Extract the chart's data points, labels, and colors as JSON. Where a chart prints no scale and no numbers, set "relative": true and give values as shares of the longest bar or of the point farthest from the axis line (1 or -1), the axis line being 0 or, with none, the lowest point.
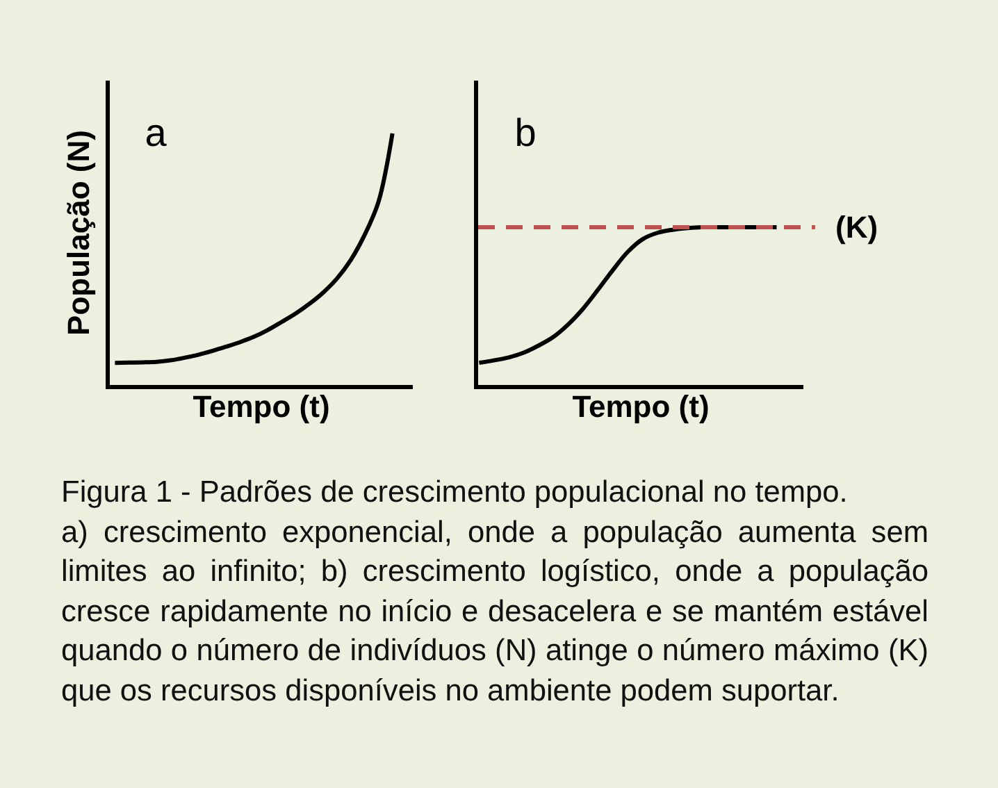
{
  "chart_data": [
    {
      "type": "line",
      "title": "a",
      "xlabel": "Tempo (t)",
      "ylabel": "População (N)",
      "relative": true,
      "categories": [
        null,
        null,
        null,
        null,
        null,
        null,
        null,
        null,
        null,
        null,
        null,
        null,
        null,
        null,
        null,
        null,
        null,
        null,
        null,
        null,
        null
      ],
      "series": [
        {
          "color": "#000000",
          "values": [
            0.088,
            0.089,
            0.09,
            0.092,
            0.098,
            0.108,
            0.12,
            0.135,
            0.152,
            0.17,
            0.191,
            0.218,
            0.25,
            0.283,
            0.322,
            0.367,
            0.423,
            0.497,
            0.597,
            0.729,
            1
          ]
        }
      ],
      "annotations": [
        "Figura 1 - Padrões de crescimento populacional no tempo.",
        "a) crescimento exponencial, onde a população aumenta sem limites ao infinito; b) crescimento logístico, onde a população cresce rapidamente no início e desacelera e se mantém estável quando o número de indivíduos (N) atinge o número máximo (K) que os recursos disponíveis no ambiente podem suportar."
      ]
    },
    {
      "type": "line",
      "title": "b",
      "xlabel": "Tempo (t)",
      "relative": true,
      "categories": [
        null,
        null,
        null,
        null,
        null,
        null,
        null,
        null,
        null,
        null,
        null,
        null,
        null,
        null,
        null,
        null,
        null,
        null,
        null,
        null,
        null
      ],
      "series": [
        {
          "color": "#000000",
          "values": [
            0.141,
            0.156,
            0.175,
            0.205,
            0.25,
            0.305,
            0.385,
            0.485,
            0.605,
            0.73,
            0.845,
            0.925,
            0.965,
            0.984,
            0.995,
            1,
            1,
            1,
            1,
            1,
            1
          ]
        }
      ],
      "ref_lines": [
        {
          "axis": "y",
          "value": 1,
          "label": "(K)",
          "color": "#c0504d",
          "line_style": "dashed"
        }
      ]
    }
  ]
}
